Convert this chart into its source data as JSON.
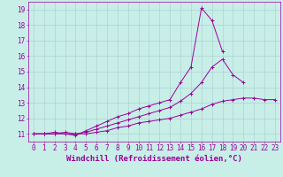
{
  "bg_color": "#c8eee8",
  "line_color": "#990099",
  "grid_color": "#aacccc",
  "xlabel": "Windchill (Refroidissement éolien,°C)",
  "xlabel_fontsize": 6.5,
  "tick_fontsize": 5.5,
  "xlim": [
    -0.5,
    23.5
  ],
  "ylim": [
    10.5,
    19.5
  ],
  "xticks": [
    0,
    1,
    2,
    3,
    4,
    5,
    6,
    7,
    8,
    9,
    10,
    11,
    12,
    13,
    14,
    15,
    16,
    17,
    18,
    19,
    20,
    21,
    22,
    23
  ],
  "yticks": [
    11,
    12,
    13,
    14,
    15,
    16,
    17,
    18,
    19
  ],
  "series": [
    {
      "x": [
        0,
        1,
        2,
        3,
        4,
        5,
        6,
        7,
        8,
        9,
        10,
        11,
        12,
        13,
        14,
        15,
        16,
        17,
        18,
        19,
        20,
        21,
        22,
        23
      ],
      "y": [
        11.0,
        11.0,
        11.1,
        11.0,
        10.9,
        11.2,
        11.5,
        11.8,
        12.1,
        12.3,
        12.6,
        12.8,
        13.0,
        13.2,
        14.3,
        15.3,
        19.1,
        18.3,
        16.3,
        null,
        null,
        null,
        null,
        null
      ]
    },
    {
      "x": [
        0,
        1,
        2,
        3,
        4,
        5,
        6,
        7,
        8,
        9,
        10,
        11,
        12,
        13,
        14,
        15,
        16,
        17,
        18,
        19,
        20,
        21,
        22,
        23
      ],
      "y": [
        11.0,
        11.0,
        11.0,
        11.1,
        11.0,
        11.1,
        11.3,
        11.5,
        11.7,
        11.9,
        12.1,
        12.3,
        12.5,
        12.7,
        13.1,
        13.6,
        14.3,
        15.3,
        15.8,
        14.8,
        14.3,
        null,
        null,
        null
      ]
    },
    {
      "x": [
        0,
        1,
        2,
        3,
        4,
        5,
        6,
        7,
        8,
        9,
        10,
        11,
        12,
        13,
        14,
        15,
        16,
        17,
        18,
        19,
        20,
        21,
        22,
        23
      ],
      "y": [
        11.0,
        11.0,
        11.0,
        11.0,
        11.0,
        11.0,
        11.1,
        11.2,
        11.4,
        11.5,
        11.7,
        11.8,
        11.9,
        12.0,
        12.2,
        12.4,
        12.6,
        12.9,
        13.1,
        13.2,
        13.3,
        13.3,
        13.2,
        13.2
      ]
    }
  ]
}
